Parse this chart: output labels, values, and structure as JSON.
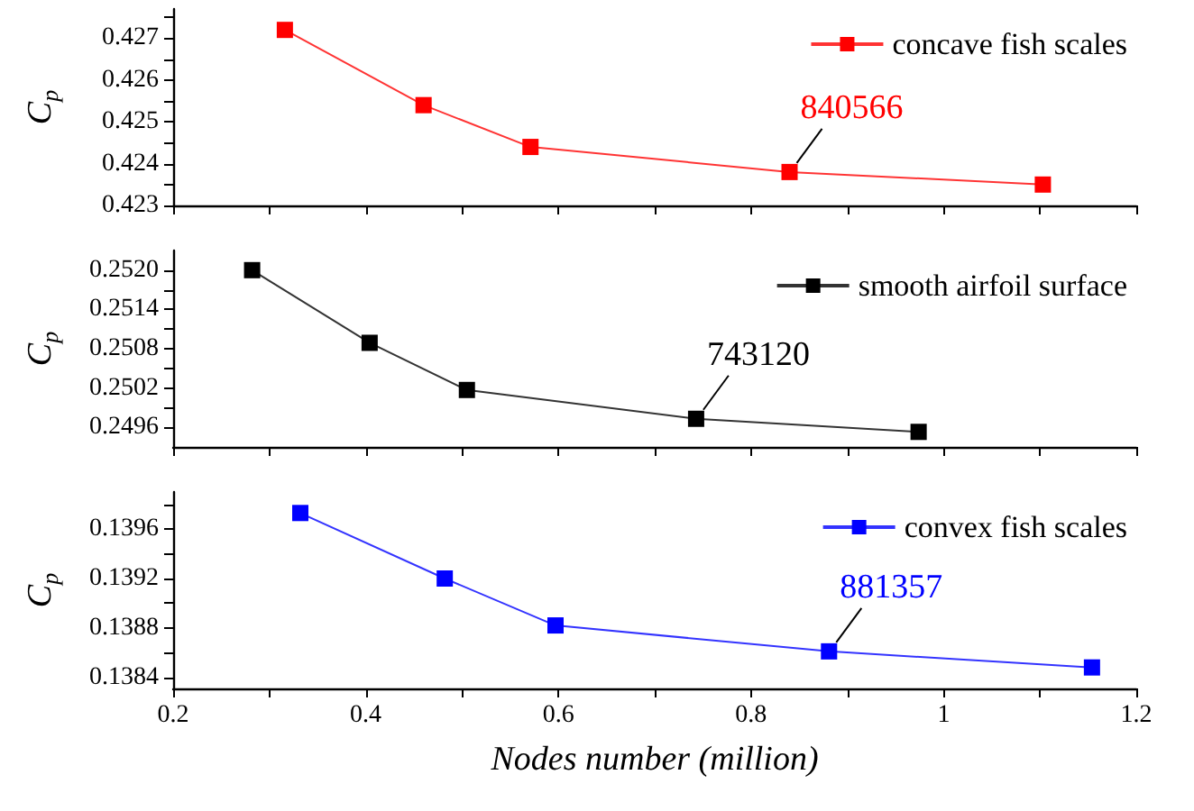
{
  "chart_data": [
    {
      "type": "line",
      "x": [
        0.316,
        0.46,
        0.571,
        0.84,
        1.103
      ],
      "series": [
        {
          "name": "concave fish scales",
          "color": "#ff0000",
          "values": [
            0.4272,
            0.4254,
            0.4244,
            0.4238,
            0.4235
          ]
        }
      ],
      "xlim": [
        0.2,
        1.2
      ],
      "xticks": [
        0.2,
        {
          "value": 0.3,
          "label": null
        },
        0.4,
        {
          "value": 0.5,
          "label": null
        },
        0.6,
        {
          "value": 0.7,
          "label": null
        },
        0.8,
        {
          "value": 0.9,
          "label": null
        },
        1,
        {
          "value": 1.1,
          "label": null
        },
        1.2
      ],
      "ylim": [
        0.423,
        0.4277
      ],
      "yticks": [
        0.423,
        {
          "value": 0.4235,
          "label": null
        },
        0.424,
        {
          "value": 0.4245,
          "label": null
        },
        0.425,
        {
          "value": 0.4255,
          "label": null
        },
        0.426,
        {
          "value": 0.4265,
          "label": null
        },
        0.427,
        {
          "value": 0.4275,
          "label": null
        }
      ],
      "ylabel": "C$_{p}$",
      "tick_labels": "y",
      "marker": "square",
      "legend": "top right",
      "grid": false,
      "annotations": [
        {
          "text": "840566",
          "x": 0.84,
          "y": 0.4238
        }
      ]
    },
    {
      "type": "line",
      "x": [
        0.282,
        0.404,
        0.505,
        0.743,
        0.974
      ],
      "series": [
        {
          "name": "smooth airfoil surface",
          "color": "#000000",
          "values": [
            0.252,
            0.25089,
            0.25017,
            0.24973,
            0.24953
          ]
        }
      ],
      "xlim": [
        0.2,
        1.2
      ],
      "xticks": [
        0.2,
        {
          "value": 0.3,
          "label": null
        },
        0.4,
        {
          "value": 0.5,
          "label": null
        },
        0.6,
        {
          "value": 0.7,
          "label": null
        },
        0.8,
        {
          "value": 0.9,
          "label": null
        },
        1,
        {
          "value": 1.1,
          "label": null
        },
        1.2
      ],
      "ylim": [
        0.2493,
        0.2523
      ],
      "yticks": [
        {
          "value": 0.2496,
          "label": "0.2496"
        },
        {
          "value": 0.2499,
          "label": null
        },
        {
          "value": 0.2502,
          "label": "0.2502"
        },
        {
          "value": 0.2505,
          "label": null
        },
        {
          "value": 0.2508,
          "label": "0.2508"
        },
        {
          "value": 0.2511,
          "label": null
        },
        {
          "value": 0.2514,
          "label": "0.2514"
        },
        {
          "value": 0.2517,
          "label": null
        },
        {
          "value": 0.252,
          "label": "0.2520"
        }
      ],
      "ylabel": "C$_{p}$",
      "tick_labels": "y",
      "marker": "square",
      "legend": "top right",
      "grid": false,
      "annotations": [
        {
          "text": "743120",
          "x": 0.743,
          "y": 0.24973
        }
      ]
    },
    {
      "type": "line",
      "x": [
        0.332,
        0.482,
        0.597,
        0.881,
        1.154
      ],
      "series": [
        {
          "name": "convex fish scales",
          "color": "#0000ff",
          "values": [
            0.13973,
            0.1392,
            0.13882,
            0.13861,
            0.13848
          ]
        }
      ],
      "xlim": [
        0.2,
        1.2
      ],
      "xticks": [
        0.2,
        {
          "value": 0.3,
          "label": null
        },
        0.4,
        {
          "value": 0.5,
          "label": null
        },
        0.6,
        {
          "value": 0.7,
          "label": null
        },
        0.8,
        {
          "value": 0.9,
          "label": null
        },
        1,
        {
          "value": 1.1,
          "label": null
        },
        1.2
      ],
      "ylim": [
        0.13831,
        0.1399
      ],
      "yticks": [
        0.1384,
        {
          "value": 0.1386,
          "label": null
        },
        0.1388,
        {
          "value": 0.139,
          "label": null
        },
        0.1392,
        {
          "value": 0.1394,
          "label": null
        },
        0.1396,
        {
          "value": 0.1398,
          "label": null
        }
      ],
      "xlabel": "Nodes number (million)",
      "ylabel": "C$_{p}$",
      "marker": "square",
      "legend": "top right",
      "grid": false,
      "annotations": [
        {
          "text": "881357",
          "x": 0.881,
          "y": 0.13861
        }
      ]
    }
  ]
}
